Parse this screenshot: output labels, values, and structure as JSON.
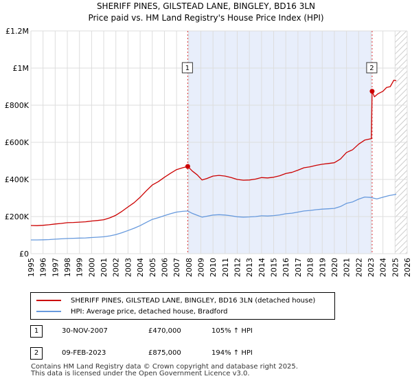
{
  "chart_data": {
    "type": "line",
    "title": "SHERIFF PINES, GILSTEAD LANE, BINGLEY, BD16 3LN",
    "subtitle": "Price paid vs. HM Land Registry's House Price Index (HPI)",
    "xlabel": "",
    "ylabel": "",
    "xlim": [
      1995,
      2026
    ],
    "ylim": [
      0,
      1200000
    ],
    "x_ticks": [
      "1995",
      "1996",
      "1997",
      "1998",
      "1999",
      "2000",
      "2001",
      "2002",
      "2003",
      "2004",
      "2005",
      "2006",
      "2007",
      "2008",
      "2009",
      "2010",
      "2011",
      "2012",
      "2013",
      "2014",
      "2015",
      "2016",
      "2017",
      "2018",
      "2019",
      "2020",
      "2021",
      "2022",
      "2023",
      "2024",
      "2025",
      "2026"
    ],
    "y_ticks": [
      {
        "value": 0,
        "label": "£0"
      },
      {
        "value": 200000,
        "label": "£200K"
      },
      {
        "value": 400000,
        "label": "£400K"
      },
      {
        "value": 600000,
        "label": "£600K"
      },
      {
        "value": 800000,
        "label": "£800K"
      },
      {
        "value": 1000000,
        "label": "£1M"
      },
      {
        "value": 1200000,
        "label": "£1.2M"
      }
    ],
    "grid": true,
    "shaded_period": {
      "from": 2007.92,
      "to": 2023.11
    },
    "future_hatch_from": 2025.0,
    "series": [
      {
        "name": "SHERIFF PINES, GILSTEAD LANE, BINGLEY, BD16 3LN (detached house)",
        "color": "#cc0000",
        "x": [
          1995,
          1995.5,
          1996,
          1996.5,
          1997,
          1997.5,
          1998,
          1998.5,
          1999,
          1999.5,
          2000,
          2000.5,
          2001,
          2001.5,
          2002,
          2002.5,
          2003,
          2003.5,
          2004,
          2004.5,
          2005,
          2005.5,
          2006,
          2006.5,
          2007,
          2007.5,
          2007.92,
          2008.3,
          2008.7,
          2009.1,
          2009.5,
          2010,
          2010.5,
          2011,
          2011.5,
          2012,
          2012.5,
          2013,
          2013.5,
          2014,
          2014.5,
          2015,
          2015.5,
          2016,
          2016.5,
          2017,
          2017.5,
          2018,
          2018.5,
          2019,
          2019.5,
          2020,
          2020.5,
          2021,
          2021.5,
          2022,
          2022.5,
          2023.05,
          2023.11,
          2023.3,
          2023.6,
          2024,
          2024.3,
          2024.6,
          2024.9,
          2025.1
        ],
        "y": [
          152000,
          151000,
          153000,
          156000,
          160000,
          163000,
          167000,
          168000,
          170000,
          172000,
          176000,
          179000,
          183000,
          193000,
          207000,
          228000,
          252000,
          275000,
          304000,
          338000,
          370000,
          388000,
          412000,
          433000,
          453000,
          463000,
          470000,
          445000,
          425000,
          397000,
          405000,
          418000,
          422000,
          418000,
          410000,
          400000,
          396000,
          397000,
          402000,
          410000,
          408000,
          412000,
          420000,
          432000,
          438000,
          450000,
          463000,
          468000,
          476000,
          482000,
          486000,
          490000,
          510000,
          545000,
          560000,
          590000,
          612000,
          620000,
          875000,
          845000,
          862000,
          875000,
          895000,
          900000,
          935000,
          932000
        ]
      },
      {
        "name": "HPI: Average price, detached house, Bradford",
        "color": "#6699dd",
        "x": [
          1995,
          1995.5,
          1996,
          1996.5,
          1997,
          1997.5,
          1998,
          1998.5,
          1999,
          1999.5,
          2000,
          2000.5,
          2001,
          2001.5,
          2002,
          2002.5,
          2003,
          2003.5,
          2004,
          2004.5,
          2005,
          2005.5,
          2006,
          2006.5,
          2007,
          2007.5,
          2007.92,
          2008.3,
          2008.7,
          2009.1,
          2009.5,
          2010,
          2010.5,
          2011,
          2011.5,
          2012,
          2012.5,
          2013,
          2013.5,
          2014,
          2014.5,
          2015,
          2015.5,
          2016,
          2016.5,
          2017,
          2017.5,
          2018,
          2018.5,
          2019,
          2019.5,
          2020,
          2020.5,
          2021,
          2021.5,
          2022,
          2022.5,
          2023,
          2023.5,
          2024,
          2024.5,
          2025.1
        ],
        "y": [
          74000,
          74000,
          75000,
          76000,
          78000,
          80000,
          82000,
          83000,
          84000,
          85000,
          87000,
          89000,
          91000,
          96000,
          103000,
          113000,
          125000,
          137000,
          151000,
          168000,
          185000,
          194000,
          205000,
          215000,
          224000,
          228000,
          230000,
          217000,
          207000,
          197000,
          202000,
          208000,
          210000,
          208000,
          204000,
          199000,
          197000,
          198000,
          200000,
          204000,
          203000,
          205000,
          209000,
          215000,
          218000,
          224000,
          230000,
          233000,
          237000,
          240000,
          242000,
          244000,
          254000,
          271000,
          279000,
          294000,
          305000,
          303000,
          295000,
          304000,
          313000,
          320000
        ]
      }
    ],
    "markers": [
      {
        "id": "1",
        "x": 2007.92,
        "y": 470000,
        "label_y": 1000000
      },
      {
        "id": "2",
        "x": 2023.11,
        "y": 875000,
        "label_y": 1000000
      }
    ]
  },
  "legend": {
    "entries": [
      {
        "label": "SHERIFF PINES, GILSTEAD LANE, BINGLEY, BD16 3LN (detached house)",
        "color": "#cc0000"
      },
      {
        "label": "HPI: Average price, detached house, Bradford",
        "color": "#6699dd"
      }
    ]
  },
  "transactions": [
    {
      "id": "1",
      "date": "30-NOV-2007",
      "price": "£470,000",
      "hpi": "105% ↑ HPI"
    },
    {
      "id": "2",
      "date": "09-FEB-2023",
      "price": "£875,000",
      "hpi": "194% ↑ HPI"
    }
  ],
  "footer": {
    "line1": "Contains HM Land Registry data © Crown copyright and database right 2025.",
    "line2": "This data is licensed under the Open Government Licence v3.0."
  }
}
